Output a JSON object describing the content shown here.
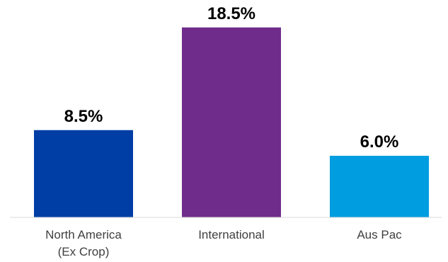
{
  "chart_data": {
    "type": "bar",
    "categories": [
      [
        "North America",
        "(Ex Crop)"
      ],
      [
        "International"
      ],
      [
        "Aus Pac"
      ]
    ],
    "values": [
      8.5,
      18.5,
      6.0
    ],
    "value_labels": [
      "8.5%",
      "18.5%",
      "6.0%"
    ],
    "colors": [
      "#003da5",
      "#6f2c8a",
      "#009de0"
    ],
    "ylim": [
      0,
      20
    ],
    "grid": false,
    "legend": "none",
    "axis_color": "#d9d9d9"
  }
}
